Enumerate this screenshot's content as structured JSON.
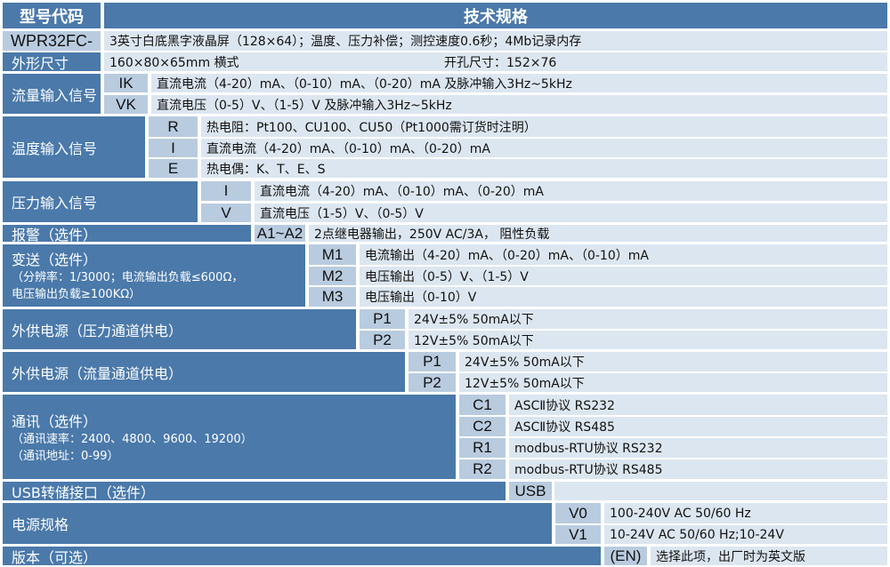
{
  "colors": {
    "header": "#4a79aa",
    "code_cell": "#b9cbdf",
    "description_cell": "#dce6f0"
  },
  "header": {
    "model_code": "型号代码",
    "spec": "技术规格"
  },
  "model": {
    "label": "WPR32FC-",
    "desc": "3英寸白底黑字液晶屏（128×64）；温度、压力补偿；测控速度0.6秒；4Mb记录内存"
  },
  "size": {
    "label": "外形尺寸",
    "desc": "160×80×65mm 横式",
    "cutout": "开孔尺寸：152×76"
  },
  "flow": {
    "label": "流量输入信号",
    "options": [
      {
        "code": "IK",
        "desc": "直流电流（4-20）mA、（0-10）mA、（0-20）mA 及脉冲输入3Hz~5kHz"
      },
      {
        "code": "VK",
        "desc": "直流电压（0-5）V、（1-5）V 及脉冲输入3Hz~5kHz"
      }
    ]
  },
  "temperature": {
    "label": "温度输入信号",
    "options": [
      {
        "code": "R",
        "desc": "热电阻：Pt100、CU100、CU50（Pt1000需订货时注明）"
      },
      {
        "code": "I",
        "desc": "直流电流（4-20）mA、（0-10）mA、（0-20）mA"
      },
      {
        "code": "E",
        "desc": "热电偶：K、T、E、S"
      }
    ]
  },
  "pressure": {
    "label": "压力输入信号",
    "options": [
      {
        "code": "I",
        "desc": "直流电流（4-20）mA、（0-10）mA、（0-20）mA"
      },
      {
        "code": "V",
        "desc": "直流电压（1-5）V、（0-5）V"
      }
    ]
  },
  "alarm": {
    "label": "报警（选件）",
    "options": [
      {
        "code": "A1~A2",
        "desc": "2点继电器输出，250V AC/3A， 阻性负载"
      }
    ]
  },
  "transmit": {
    "label": "变送（选件）",
    "note1": "（分辨率：1/3000；电流输出负载≤600Ω，",
    "note2": " 电压输出负载≥100KΩ）",
    "options": [
      {
        "code": "M1",
        "desc": "电流输出（4-20）mA、（0-20）mA、（0-10）mA"
      },
      {
        "code": "M2",
        "desc": "电压输出（0-5）V、（1-5）V"
      },
      {
        "code": "M3",
        "desc": "电压输出（0-10）V"
      }
    ]
  },
  "supply_pressure": {
    "label": "外供电源（压力通道供电）",
    "options": [
      {
        "code": "P1",
        "desc": "24V±5%  50mA以下"
      },
      {
        "code": "P2",
        "desc": "12V±5%  50mA以下"
      }
    ]
  },
  "supply_flow": {
    "label": "外供电源（流量通道供电）",
    "options": [
      {
        "code": "P1",
        "desc": "24V±5%  50mA以下"
      },
      {
        "code": "P2",
        "desc": "12V±5%  50mA以下"
      }
    ]
  },
  "comm": {
    "label": "通讯（选件）",
    "note1": "（通讯速率：2400、4800、9600、19200）",
    "note2": "（通讯地址：0-99）",
    "options": [
      {
        "code": "C1",
        "desc": "ASCⅡ协议 RS232"
      },
      {
        "code": "C2",
        "desc": "ASCⅡ协议 RS485"
      },
      {
        "code": "R1",
        "desc": "modbus-RTU协议 RS232"
      },
      {
        "code": "R2",
        "desc": "modbus-RTU协议 RS485"
      }
    ]
  },
  "usb": {
    "label": "USB转储接口（选件）",
    "options": [
      {
        "code": "USB",
        "desc": ""
      }
    ]
  },
  "power": {
    "label": "电源规格",
    "options": [
      {
        "code": "V0",
        "desc": "100-240V AC 50/60 Hz"
      },
      {
        "code": "V1",
        "desc": "10-24V AC 50/60 Hz;10-24V"
      }
    ]
  },
  "version": {
    "label": "版本（可选）",
    "options": [
      {
        "code": "(EN)",
        "desc": "选择此项，出厂时为英文版"
      }
    ]
  }
}
